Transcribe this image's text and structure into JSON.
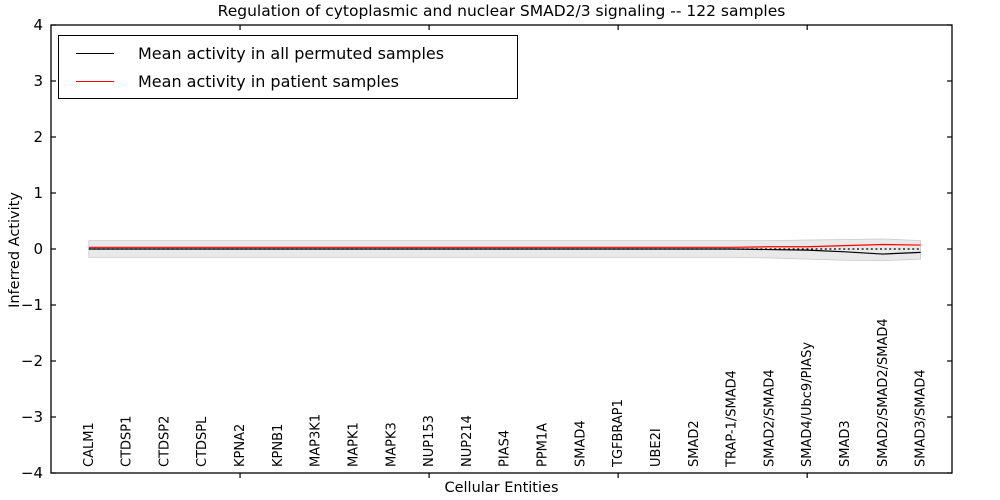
{
  "title": "Regulation of cytoplasmic and nuclear SMAD2/3 signaling -- 122 samples",
  "axes": {
    "x_label": "Cellular Entities",
    "y_label": "Inferred Activity"
  },
  "legend": {
    "items": [
      {
        "label": "Mean activity in all permuted samples",
        "color": "#000000"
      },
      {
        "label": "Mean activity in patient samples",
        "color": "#ff0000"
      }
    ]
  },
  "chart_data": {
    "type": "line",
    "title": "Regulation of cytoplasmic and nuclear SMAD2/3 signaling -- 122 samples",
    "xlabel": "Cellular Entities",
    "ylabel": "Inferred Activity",
    "ylim": [
      -4,
      4
    ],
    "xlim": [
      0,
      23.83
    ],
    "y_ticks": [
      4,
      3,
      2,
      1,
      0,
      -1,
      -2,
      -3,
      -4
    ],
    "x_major_tick_positions": [
      5,
      10,
      15,
      20
    ],
    "grid": false,
    "legend_position": "upper left",
    "categories": [
      "CALM1",
      "CTDSP1",
      "CTDSP2",
      "CTDSPL",
      "KPNA2",
      "KPNB1",
      "MAP3K1",
      "MAPK1",
      "MAPK3",
      "NUP153",
      "NUP214",
      "PIAS4",
      "PPM1A",
      "SMAD4",
      "TGFBRAP1",
      "UBE2I",
      "SMAD2",
      "TRAP-1/SMAD4",
      "SMAD2/SMAD4",
      "SMAD4/Ubc9/PIASy",
      "SMAD3",
      "SMAD2/SMAD2/SMAD4",
      "SMAD3/SMAD4"
    ],
    "series": [
      {
        "name": "Mean activity in all permuted samples",
        "color": "#000000",
        "style": "solid",
        "values": [
          0,
          0,
          0,
          0,
          0,
          0,
          0,
          0,
          0,
          0,
          0,
          0,
          0,
          0,
          0,
          0,
          0,
          0,
          -0.01,
          -0.02,
          -0.05,
          -0.09,
          -0.06
        ]
      },
      {
        "name": "Mean activity in patient samples",
        "color": "#ff0000",
        "style": "solid",
        "values": [
          0.03,
          0.03,
          0.03,
          0.03,
          0.03,
          0.03,
          0.03,
          0.03,
          0.03,
          0.03,
          0.03,
          0.03,
          0.03,
          0.03,
          0.03,
          0.03,
          0.03,
          0.03,
          0.04,
          0.04,
          0.06,
          0.08,
          0.07
        ]
      },
      {
        "name": "zero-reference",
        "color": "#000000",
        "style": "dotted",
        "values": [
          0,
          0,
          0,
          0,
          0,
          0,
          0,
          0,
          0,
          0,
          0,
          0,
          0,
          0,
          0,
          0,
          0,
          0,
          0,
          0,
          0,
          0,
          0
        ]
      }
    ],
    "band": {
      "name": "permuted-activity-range",
      "color": "#e9e9e9",
      "edge_color": "#cccccc",
      "upper": [
        0.15,
        0.15,
        0.15,
        0.15,
        0.15,
        0.15,
        0.15,
        0.15,
        0.15,
        0.15,
        0.15,
        0.15,
        0.15,
        0.15,
        0.15,
        0.15,
        0.15,
        0.15,
        0.15,
        0.16,
        0.17,
        0.18,
        0.15
      ],
      "lower": [
        -0.15,
        -0.15,
        -0.15,
        -0.15,
        -0.15,
        -0.15,
        -0.15,
        -0.15,
        -0.15,
        -0.15,
        -0.15,
        -0.15,
        -0.15,
        -0.15,
        -0.15,
        -0.15,
        -0.15,
        -0.15,
        -0.16,
        -0.18,
        -0.2,
        -0.21,
        -0.18
      ]
    }
  }
}
